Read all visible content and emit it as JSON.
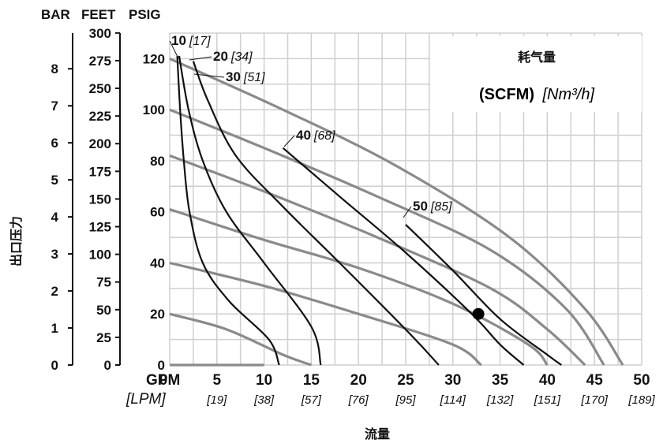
{
  "left_axes": {
    "header_bar": "BAR",
    "header_feet": "FEET",
    "header_psig": "PSIG",
    "side_label": "出口压力",
    "bar_ticks": [
      "0",
      "1",
      "2",
      "3",
      "4",
      "5",
      "6",
      "7",
      "8"
    ],
    "feet_ticks": [
      "0",
      "25",
      "50",
      "75",
      "100",
      "125",
      "150",
      "175",
      "200",
      "225",
      "250",
      "275",
      "300"
    ]
  },
  "legend": {
    "title": "耗气量",
    "units_bold": "(SCFM)",
    "units_italic": "[Nm³/h]"
  },
  "chart_data": {
    "type": "line",
    "x_unit": "GPM",
    "x_unit_alt": "[LPM]",
    "xlabel": "流量",
    "x_ticks": [
      {
        "gpm": "5",
        "lpm": "[19]"
      },
      {
        "gpm": "10",
        "lpm": "[38]"
      },
      {
        "gpm": "15",
        "lpm": "[57]"
      },
      {
        "gpm": "20",
        "lpm": "[76]"
      },
      {
        "gpm": "25",
        "lpm": "[95]"
      },
      {
        "gpm": "30",
        "lpm": "[114]"
      },
      {
        "gpm": "35",
        "lpm": "[132]"
      },
      {
        "gpm": "40",
        "lpm": "[151]"
      },
      {
        "gpm": "45",
        "lpm": "[170]"
      },
      {
        "gpm": "50",
        "lpm": "[189]"
      }
    ],
    "x_zero_label": "0",
    "xlim": [
      0,
      50
    ],
    "ylim": [
      0,
      130
    ],
    "y_ticks": [
      "0",
      "20",
      "40",
      "60",
      "80",
      "100",
      "120"
    ],
    "grid": true,
    "air_curves": [
      {
        "label": "10",
        "label_alt": "[17]",
        "points": [
          [
            0.8,
            121
          ],
          [
            1.1,
            100
          ],
          [
            1.5,
            80
          ],
          [
            2.1,
            60
          ],
          [
            3.5,
            40
          ],
          [
            6.3,
            25
          ],
          [
            10.5,
            10
          ],
          [
            11.6,
            0
          ]
        ]
      },
      {
        "label": "20",
        "label_alt": "[34]",
        "points": [
          [
            1.0,
            121
          ],
          [
            2.0,
            100
          ],
          [
            3.5,
            80
          ],
          [
            6.0,
            60
          ],
          [
            10.0,
            40
          ],
          [
            15.0,
            15
          ],
          [
            16.0,
            0
          ]
        ]
      },
      {
        "label": "30",
        "label_alt": "[51]",
        "points": [
          [
            2.5,
            119
          ],
          [
            4.0,
            104
          ],
          [
            7.0,
            82
          ],
          [
            12.0,
            62
          ],
          [
            18.0,
            40
          ],
          [
            25.5,
            12
          ],
          [
            28.5,
            0
          ]
        ]
      },
      {
        "label": "40",
        "label_alt": "[68]",
        "points": [
          [
            12.0,
            85
          ],
          [
            18.0,
            66
          ],
          [
            25.0,
            44
          ],
          [
            32.0,
            20
          ],
          [
            35.0,
            8
          ],
          [
            37.5,
            0
          ]
        ]
      },
      {
        "label": "50",
        "label_alt": "[85]",
        "points": [
          [
            25.0,
            55
          ],
          [
            30.0,
            37
          ],
          [
            35.0,
            18
          ],
          [
            40.0,
            4
          ],
          [
            41.5,
            0
          ]
        ]
      }
    ],
    "pressure_lines": [
      {
        "label": "120",
        "points": [
          [
            0,
            120
          ],
          [
            12,
            100
          ],
          [
            24,
            78
          ],
          [
            36,
            50
          ],
          [
            44,
            22
          ],
          [
            48,
            0
          ]
        ]
      },
      {
        "label": "100",
        "points": [
          [
            0,
            100
          ],
          [
            10,
            85
          ],
          [
            22,
            66
          ],
          [
            34,
            45
          ],
          [
            42,
            22
          ],
          [
            46,
            0
          ]
        ]
      },
      {
        "label": "80",
        "points": [
          [
            0,
            82
          ],
          [
            10,
            68
          ],
          [
            22,
            50
          ],
          [
            34,
            30
          ],
          [
            40,
            14
          ],
          [
            44,
            0
          ]
        ]
      },
      {
        "label": "60",
        "points": [
          [
            0,
            61
          ],
          [
            10,
            49
          ],
          [
            20,
            38
          ],
          [
            30,
            24
          ],
          [
            38,
            8
          ],
          [
            40,
            0
          ]
        ]
      },
      {
        "label": "40",
        "points": [
          [
            0,
            40
          ],
          [
            10,
            31
          ],
          [
            20,
            20
          ],
          [
            30,
            8
          ],
          [
            33,
            0
          ]
        ]
      },
      {
        "label": "20",
        "points": [
          [
            0,
            20
          ],
          [
            6,
            14
          ],
          [
            12,
            4
          ],
          [
            15,
            0
          ]
        ]
      },
      {
        "label": "0",
        "points": [
          [
            0,
            0
          ],
          [
            5,
            0
          ],
          [
            10,
            0
          ]
        ]
      }
    ],
    "operating_point": {
      "x": 32.7,
      "y": 20
    }
  }
}
